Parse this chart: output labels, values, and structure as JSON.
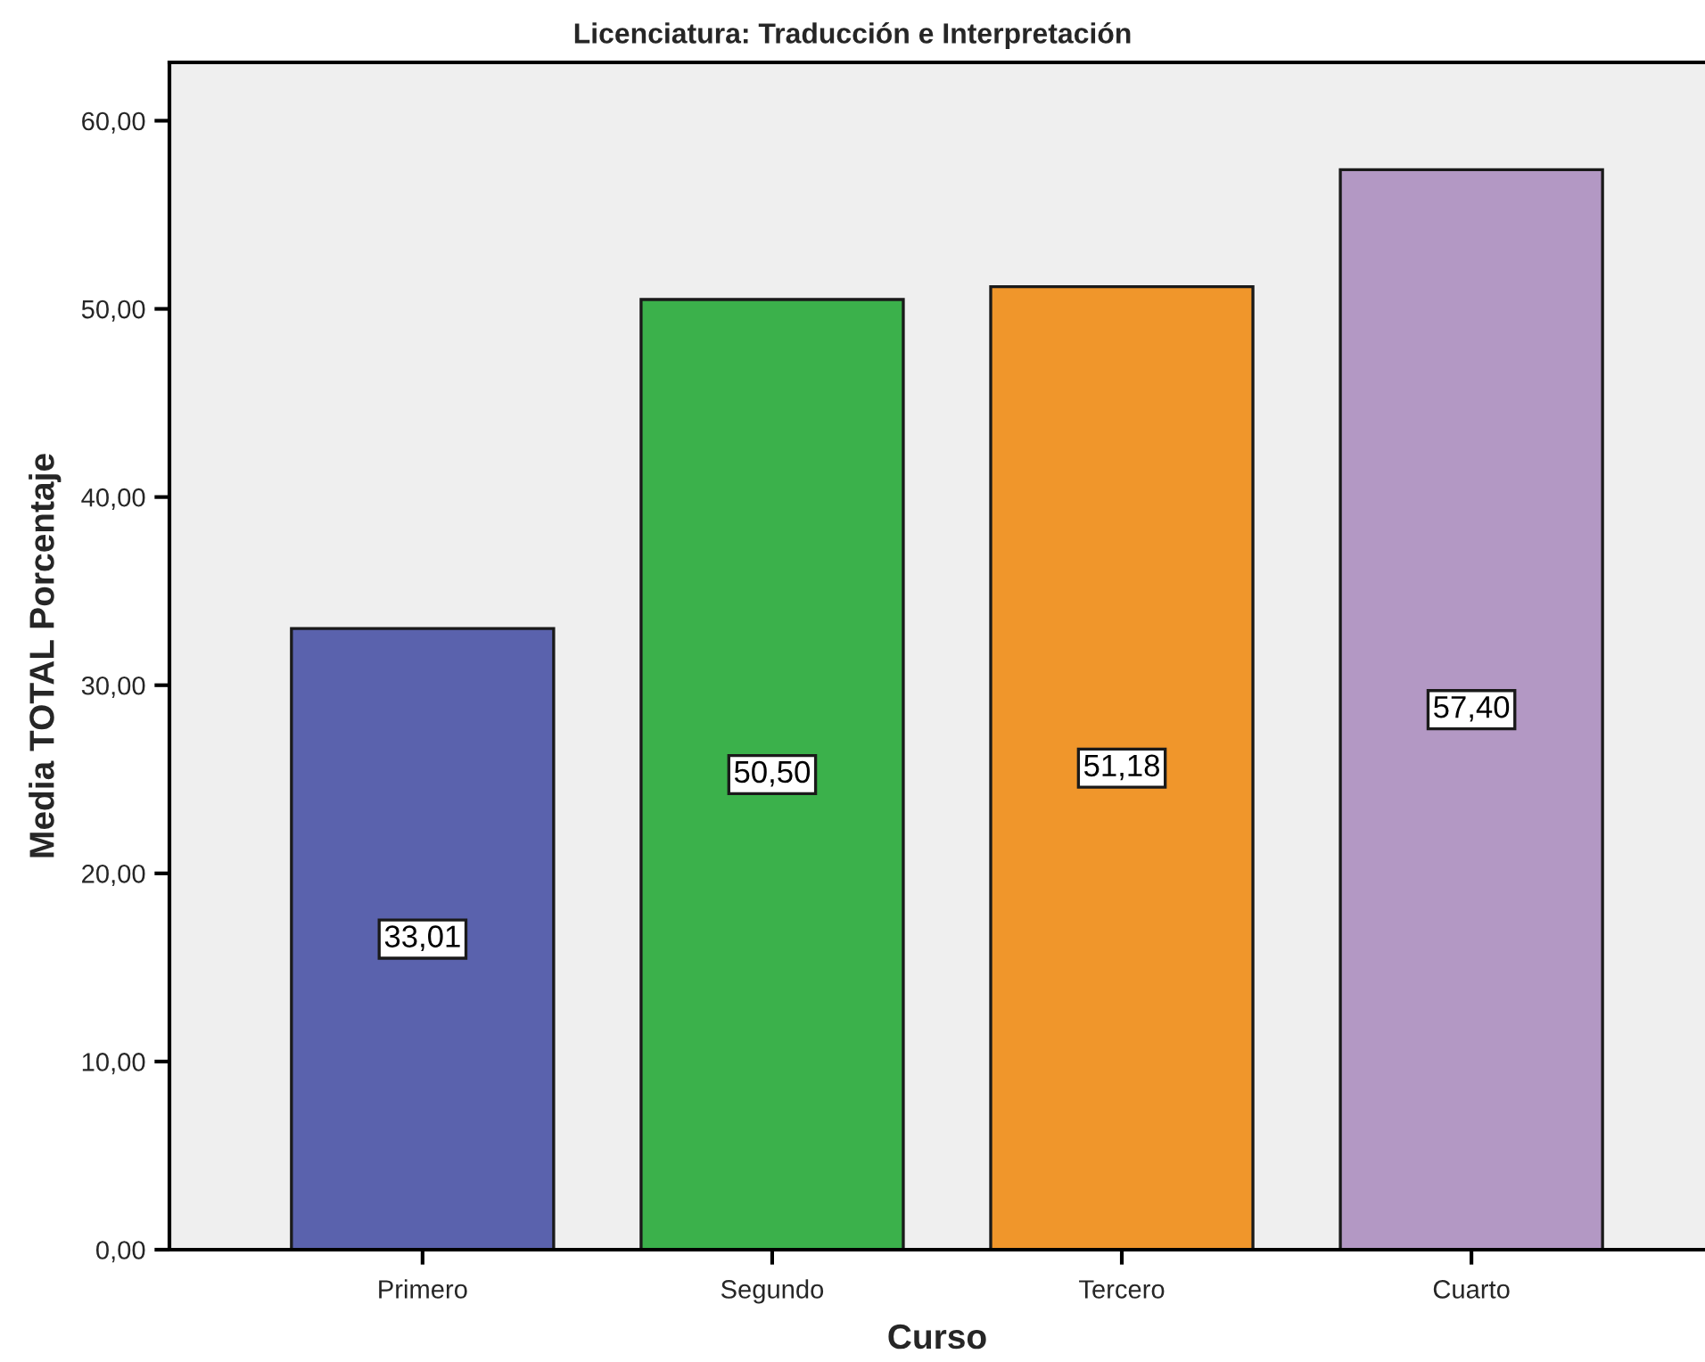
{
  "chart_data": {
    "type": "bar",
    "title": "Licenciatura: Traducción e Interpretación",
    "xlabel": "Curso",
    "ylabel": "Media TOTAL Porcentaje",
    "categories": [
      "Primero",
      "Segundo",
      "Tercero",
      "Cuarto"
    ],
    "values": [
      33.01,
      50.5,
      51.18,
      57.4
    ],
    "colors": [
      "#5a62ad",
      "#3bb14b",
      "#f0962b",
      "#b398c4"
    ],
    "value_labels": [
      "33,01",
      "50,50",
      "51,18",
      "57,40"
    ],
    "ylim": [
      0,
      63.1
    ],
    "yticks": [
      {
        "value": 0,
        "label": "0,00"
      },
      {
        "value": 10,
        "label": "10,00"
      },
      {
        "value": 20,
        "label": "20,00"
      },
      {
        "value": 30,
        "label": "30,00"
      },
      {
        "value": 40,
        "label": "40,00"
      },
      {
        "value": 50,
        "label": "50,00"
      },
      {
        "value": 60,
        "label": "60,00"
      }
    ],
    "grid": false,
    "legend": false
  }
}
